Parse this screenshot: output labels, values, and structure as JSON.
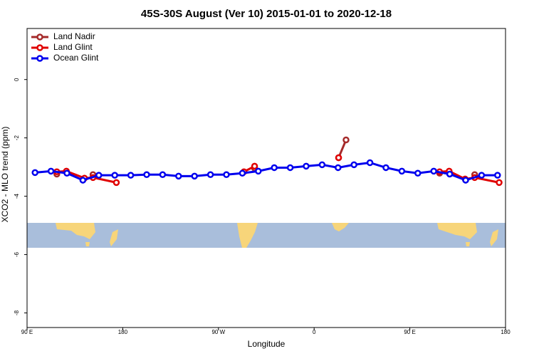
{
  "chart_data": {
    "type": "line",
    "title": "45S-30S August (Ver 10)   2015-01-01 to 2020-12-18",
    "x_label": "Longitude",
    "y_label": "XCO2 - MLO trend (ppm)",
    "xlim": [
      90,
      540
    ],
    "ylim": [
      -8.5,
      1.75
    ],
    "xticks": [
      {
        "value": 90,
        "label": "90 E"
      },
      180,
      {
        "value": 270,
        "label": "90 W"
      },
      {
        "value": 360,
        "label": "0"
      },
      {
        "value": 450,
        "label": "90 E"
      },
      {
        "value": 540,
        "label": "180"
      }
    ],
    "yticks": [
      0,
      -2,
      -4,
      -6,
      -8
    ],
    "legend": "top-left",
    "series": [
      {
        "name": "Land Nadir",
        "color": "#a52a2a",
        "x": [
          118,
          null,
          152,
          null,
          304,
          null,
          383,
          390,
          null,
          478,
          null,
          511
        ],
        "values": [
          -3.24,
          null,
          -3.26,
          null,
          -3.04,
          null,
          -2.68,
          -2.07,
          null,
          -3.21,
          null,
          -3.26
        ]
      },
      {
        "name": "Land Glint",
        "color": "#e00000",
        "x": [
          118,
          127,
          144,
          152,
          174,
          null,
          294,
          304,
          null,
          383,
          null,
          478,
          487,
          502,
          511,
          534
        ],
        "values": [
          -3.16,
          -3.14,
          -3.38,
          -3.36,
          -3.53,
          null,
          -3.16,
          -2.97,
          null,
          -2.68,
          null,
          -3.16,
          -3.14,
          -3.41,
          -3.36,
          -3.53
        ]
      },
      {
        "name": "Ocean Glint",
        "color": "#0000ee",
        "x": [
          97.5,
          112.5,
          127.5,
          142.5,
          157.5,
          172.5,
          187.5,
          202.5,
          217.5,
          232.5,
          247.5,
          262.5,
          277.5,
          292.5,
          307.5,
          322.5,
          337.5,
          352.5,
          367.5,
          382.5,
          397.5,
          412.5,
          427.5,
          442.5,
          457.5,
          472.5,
          487.5,
          502.5,
          517.5,
          532.5
        ],
        "values": [
          -3.19,
          -3.14,
          -3.21,
          -3.45,
          -3.28,
          -3.28,
          -3.28,
          -3.26,
          -3.26,
          -3.31,
          -3.31,
          -3.26,
          -3.26,
          -3.21,
          -3.14,
          -3.02,
          -3.02,
          -2.97,
          -2.92,
          -3.02,
          -2.92,
          -2.85,
          -3.02,
          -3.14,
          -3.21,
          -3.14,
          -3.24,
          -3.45,
          -3.28,
          -3.28
        ]
      }
    ]
  }
}
